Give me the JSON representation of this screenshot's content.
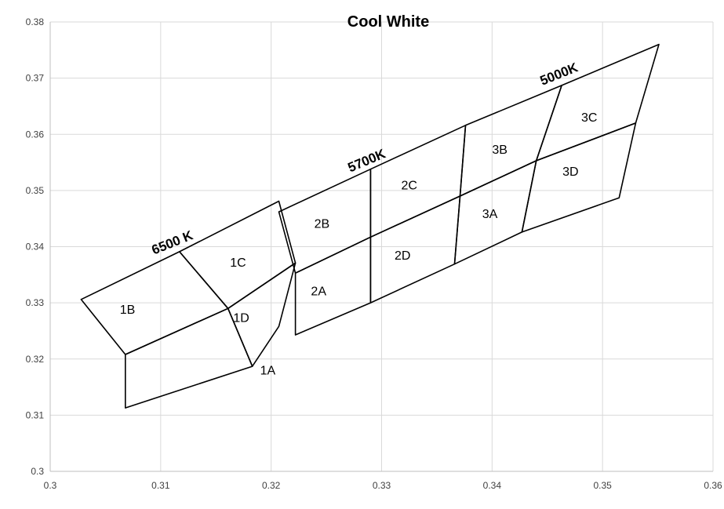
{
  "chart_data": {
    "type": "scatter",
    "title": "Cool White",
    "xlabel": "",
    "ylabel": "",
    "xlim": [
      0.3,
      0.36
    ],
    "ylim": [
      0.3,
      0.38
    ],
    "x_ticks": [
      0.3,
      0.31,
      0.32,
      0.33,
      0.34,
      0.35,
      0.36
    ],
    "y_ticks": [
      0.3,
      0.31,
      0.32,
      0.33,
      0.34,
      0.35,
      0.36,
      0.37,
      0.38
    ],
    "x_tick_labels": [
      "0.3",
      "0.31",
      "0.32",
      "0.33",
      "0.34",
      "0.35",
      "0.36"
    ],
    "y_tick_labels": [
      "0.3",
      "0.31",
      "0.32",
      "0.33",
      "0.34",
      "0.35",
      "0.36",
      "0.37",
      "0.38"
    ],
    "grid": true,
    "bins": [
      {
        "label": "1B",
        "points": [
          [
            0.3028,
            0.3306
          ],
          [
            0.3117,
            0.3391
          ],
          [
            0.3161,
            0.329
          ],
          [
            0.3068,
            0.3208
          ]
        ],
        "label_pos": [
          0.307,
          0.3289
        ]
      },
      {
        "label": "1A",
        "points": [
          [
            0.3068,
            0.3208
          ],
          [
            0.3161,
            0.329
          ],
          [
            0.3183,
            0.3187
          ],
          [
            0.3068,
            0.3113
          ]
        ],
        "label_pos": [
          0.3197,
          0.3181
        ]
      },
      {
        "label": "1C",
        "points": [
          [
            0.3117,
            0.3391
          ],
          [
            0.3207,
            0.3481
          ],
          [
            0.3222,
            0.3371
          ],
          [
            0.3161,
            0.329
          ]
        ],
        "label_pos": [
          0.317,
          0.3373
        ]
      },
      {
        "label": "1D",
        "points": [
          [
            0.3161,
            0.329
          ],
          [
            0.3222,
            0.3371
          ],
          [
            0.3207,
            0.3258
          ],
          [
            0.3183,
            0.3187
          ]
        ],
        "label_pos": [
          0.3173,
          0.3274
        ]
      },
      {
        "label": "2B",
        "points": [
          [
            0.3207,
            0.3462
          ],
          [
            0.329,
            0.3538
          ],
          [
            0.329,
            0.3417
          ],
          [
            0.3222,
            0.3353
          ]
        ],
        "label_pos": [
          0.3246,
          0.3442
        ]
      },
      {
        "label": "2A",
        "points": [
          [
            0.3222,
            0.3353
          ],
          [
            0.329,
            0.3417
          ],
          [
            0.329,
            0.33
          ],
          [
            0.3222,
            0.3243
          ]
        ],
        "label_pos": [
          0.3243,
          0.3322
        ]
      },
      {
        "label": "2C",
        "points": [
          [
            0.329,
            0.3538
          ],
          [
            0.3376,
            0.3616
          ],
          [
            0.3371,
            0.349
          ],
          [
            0.329,
            0.3417
          ]
        ],
        "label_pos": [
          0.3325,
          0.351
        ]
      },
      {
        "label": "2D",
        "points": [
          [
            0.329,
            0.3417
          ],
          [
            0.3371,
            0.349
          ],
          [
            0.3366,
            0.3369
          ],
          [
            0.329,
            0.33
          ]
        ],
        "label_pos": [
          0.3319,
          0.3385
        ]
      },
      {
        "label": "3B",
        "points": [
          [
            0.3376,
            0.3616
          ],
          [
            0.3463,
            0.3687
          ],
          [
            0.344,
            0.3553
          ],
          [
            0.3371,
            0.349
          ]
        ],
        "label_pos": [
          0.3407,
          0.3574
        ]
      },
      {
        "label": "3A",
        "points": [
          [
            0.3371,
            0.349
          ],
          [
            0.344,
            0.3553
          ],
          [
            0.3427,
            0.3426
          ],
          [
            0.3366,
            0.3369
          ]
        ],
        "label_pos": [
          0.3398,
          0.3459
        ]
      },
      {
        "label": "3C",
        "points": [
          [
            0.3463,
            0.3687
          ],
          [
            0.3551,
            0.376
          ],
          [
            0.353,
            0.362
          ],
          [
            0.344,
            0.3553
          ]
        ],
        "label_pos": [
          0.3488,
          0.3631
        ]
      },
      {
        "label": "3D",
        "points": [
          [
            0.344,
            0.3553
          ],
          [
            0.353,
            0.362
          ],
          [
            0.3515,
            0.3487
          ],
          [
            0.3427,
            0.3426
          ]
        ],
        "label_pos": [
          0.3471,
          0.3535
        ]
      }
    ],
    "cct_labels": [
      {
        "text": "6500 K",
        "pos": [
          0.3112,
          0.34
        ],
        "angle": -22
      },
      {
        "text": "5700K",
        "pos": [
          0.3288,
          0.3546
        ],
        "angle": -23
      },
      {
        "text": "5000K",
        "pos": [
          0.3462,
          0.37
        ],
        "angle": -22
      }
    ],
    "colors": {
      "outline": "#000000",
      "grid": "#d9d9d9",
      "axis": "#bfbfbf"
    }
  }
}
